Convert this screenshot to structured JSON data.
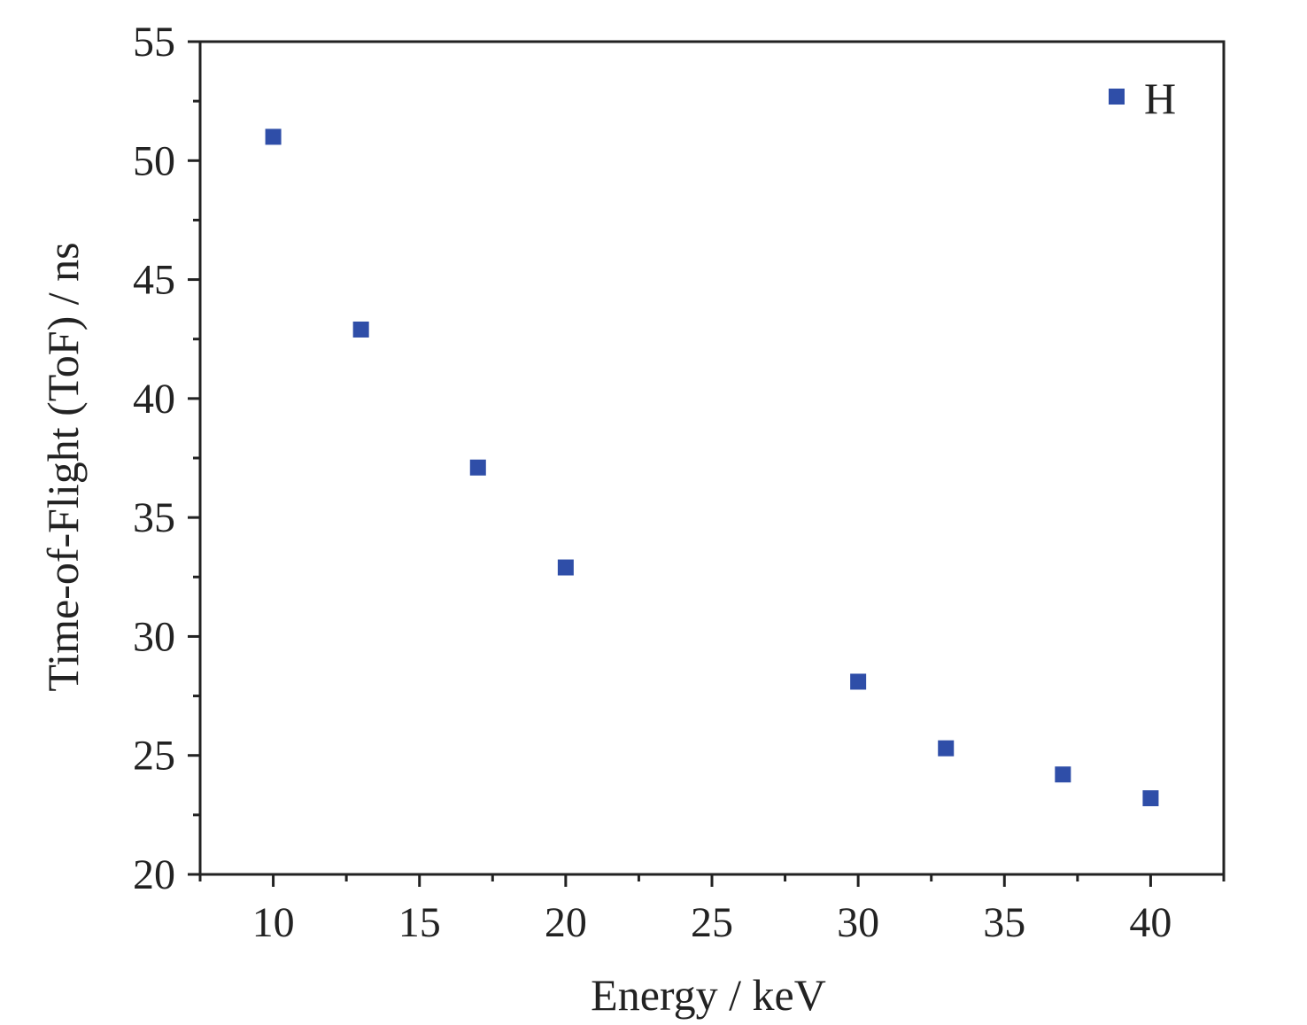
{
  "chart_data": {
    "type": "scatter",
    "title": "",
    "xlabel": "Energy / keV",
    "ylabel": "Time-of-Flight (ToF) / ns",
    "xlim": [
      7.5,
      42.5
    ],
    "ylim": [
      20,
      55
    ],
    "xticks": [
      10,
      15,
      20,
      25,
      30,
      35,
      40
    ],
    "yticks": [
      20,
      25,
      30,
      35,
      40,
      45,
      50,
      55
    ],
    "grid": false,
    "legend_position": "top-right",
    "series": [
      {
        "name": "H",
        "marker": "square",
        "color": "#2f4ea8",
        "x": [
          10,
          13,
          17,
          20,
          30,
          33,
          37,
          40
        ],
        "y": [
          51.0,
          42.9,
          37.1,
          32.9,
          28.1,
          25.3,
          24.2,
          23.2
        ]
      }
    ]
  }
}
